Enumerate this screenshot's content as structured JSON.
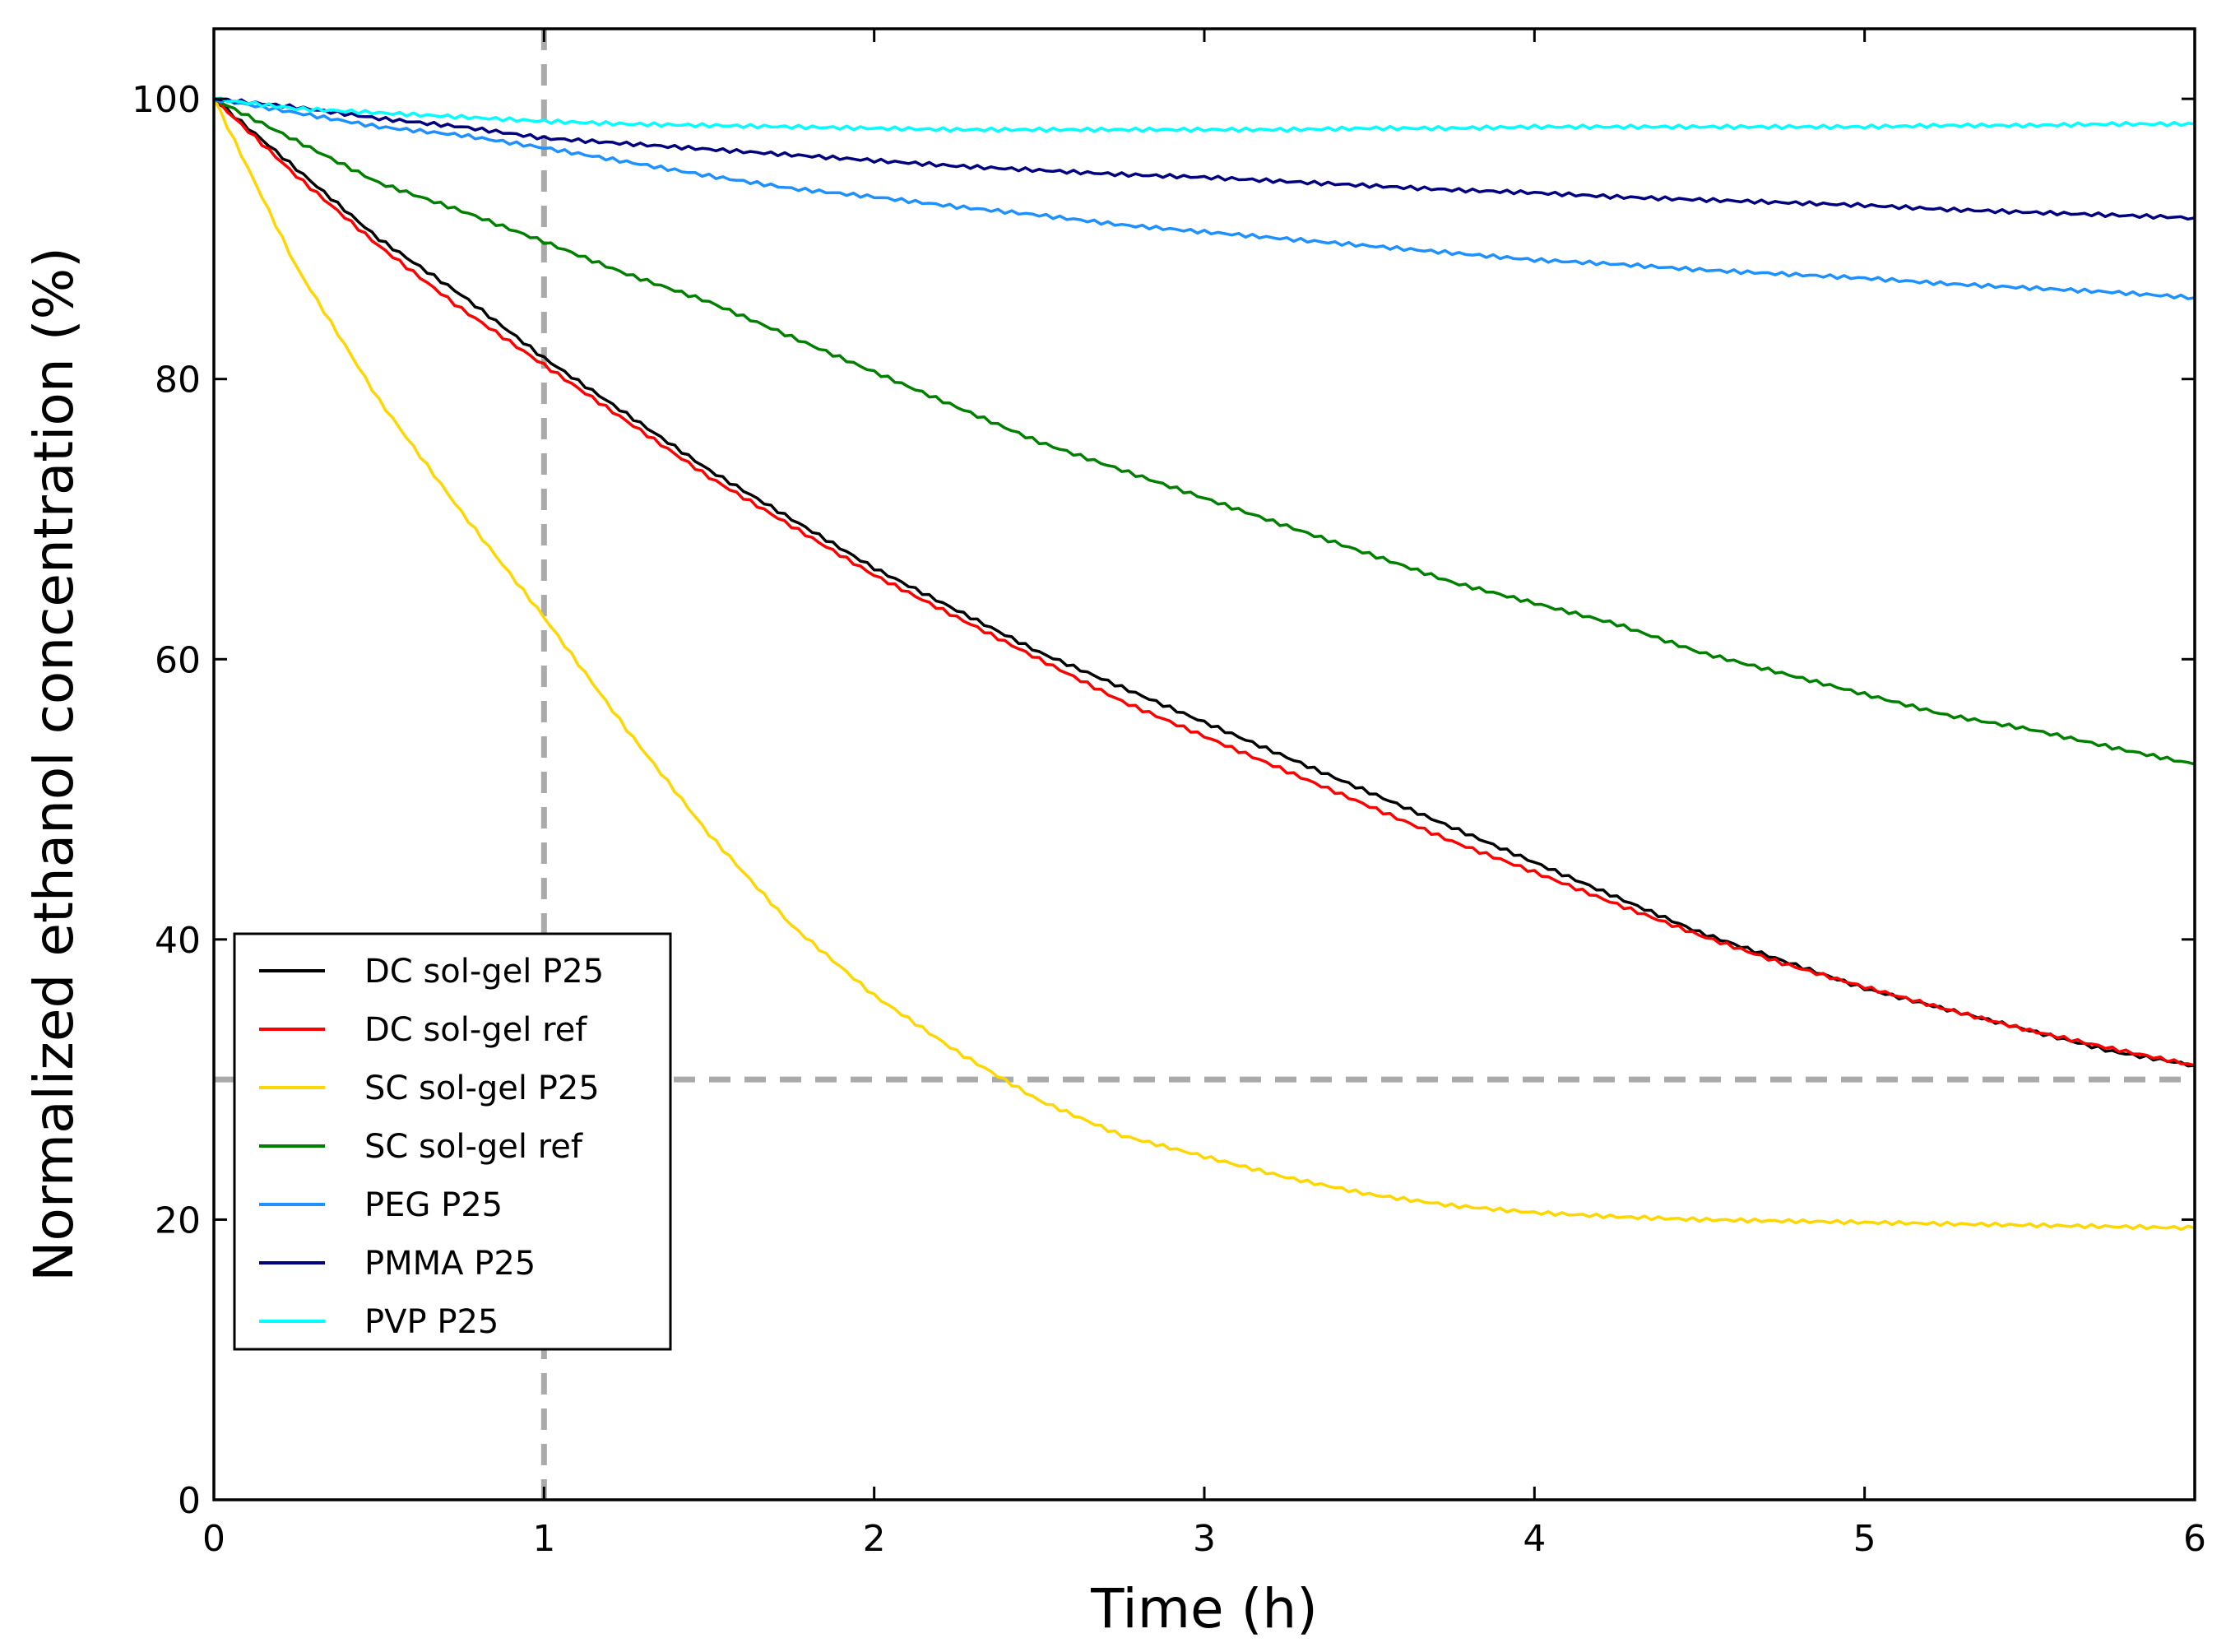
{
  "chart_data": {
    "type": "line",
    "title": "",
    "xlabel": "Time (h)",
    "ylabel": "Normalized ethanol concentration (%)",
    "xlim": [
      0,
      6
    ],
    "ylim": [
      0,
      105
    ],
    "xticks": [
      "0",
      "1",
      "2",
      "3",
      "4",
      "5",
      "6"
    ],
    "yticks": [
      "0",
      "20",
      "40",
      "60",
      "80",
      "100"
    ],
    "grid": false,
    "legend_position": "lower-left",
    "reference_lines": [
      {
        "orientation": "vertical",
        "x": 1,
        "color": "#aaaaaa",
        "style": "dashed"
      },
      {
        "orientation": "horizontal",
        "y": 30,
        "color": "#aaaaaa",
        "style": "dashed"
      }
    ],
    "x": [
      0,
      0.25,
      0.5,
      0.75,
      1,
      1.25,
      1.5,
      1.75,
      2,
      2.25,
      2.5,
      2.75,
      3,
      3.25,
      3.5,
      3.75,
      4,
      4.25,
      4.5,
      4.75,
      5,
      5.25,
      5.5,
      5.75,
      6
    ],
    "series": [
      {
        "name": "DC sol-gel P25",
        "color": "#000000",
        "values": [
          100,
          95,
          90,
          86,
          81.5,
          77.5,
          73.5,
          70,
          66.5,
          63.5,
          60.5,
          58,
          55.5,
          53,
          50.5,
          48,
          45.5,
          43,
          40.5,
          38.5,
          36.5,
          35,
          33.5,
          32,
          31
        ]
      },
      {
        "name": "DC sol-gel ref",
        "color": "#ff0000",
        "values": [
          100,
          94.5,
          89.5,
          85,
          81,
          77,
          73,
          69.5,
          66,
          63,
          60,
          57,
          54.5,
          52,
          49.5,
          47,
          44.8,
          42.5,
          40.3,
          38.3,
          36.6,
          35,
          33.5,
          32.2,
          31
        ]
      },
      {
        "name": "SC sol-gel P25",
        "color": "#ffd700",
        "values": [
          100,
          88,
          78.5,
          70.5,
          63,
          55,
          47.5,
          41,
          36,
          32,
          28.5,
          26,
          24.5,
          23,
          21.8,
          21,
          20.5,
          20.2,
          20,
          19.9,
          19.8,
          19.7,
          19.6,
          19.5,
          19.4
        ]
      },
      {
        "name": "SC sol-gel ref",
        "color": "#008000",
        "values": [
          100,
          97,
          94,
          92,
          89.8,
          87.5,
          85.5,
          83,
          80.5,
          78,
          75.5,
          73.5,
          71.5,
          69.5,
          67.5,
          65.5,
          64,
          62.5,
          60.5,
          59,
          57.5,
          56,
          55,
          53.7,
          52.5
        ]
      },
      {
        "name": "PEG P25",
        "color": "#1e90ff",
        "values": [
          100,
          99,
          98,
          97.4,
          96.5,
          95.5,
          94.5,
          93.6,
          93,
          92.3,
          91.7,
          91,
          90.5,
          90,
          89.5,
          89,
          88.5,
          88.2,
          87.8,
          87.5,
          87.2,
          86.8,
          86.5,
          86.2,
          85.8
        ]
      },
      {
        "name": "PMMA P25",
        "color": "#000080",
        "values": [
          100,
          99.4,
          98.6,
          98,
          97.2,
          96.8,
          96.4,
          96,
          95.6,
          95.2,
          94.9,
          94.6,
          94.4,
          94.1,
          93.8,
          93.5,
          93.3,
          93,
          92.8,
          92.6,
          92.4,
          92.1,
          91.9,
          91.7,
          91.5
        ]
      },
      {
        "name": "PVP P25",
        "color": "#00ffff",
        "values": [
          100,
          99.3,
          99,
          98.7,
          98.4,
          98.2,
          98.1,
          98,
          97.9,
          97.8,
          97.8,
          97.8,
          97.8,
          97.8,
          97.9,
          97.9,
          98,
          98,
          98,
          98,
          98,
          98.1,
          98.1,
          98.2,
          98.2
        ]
      }
    ]
  }
}
